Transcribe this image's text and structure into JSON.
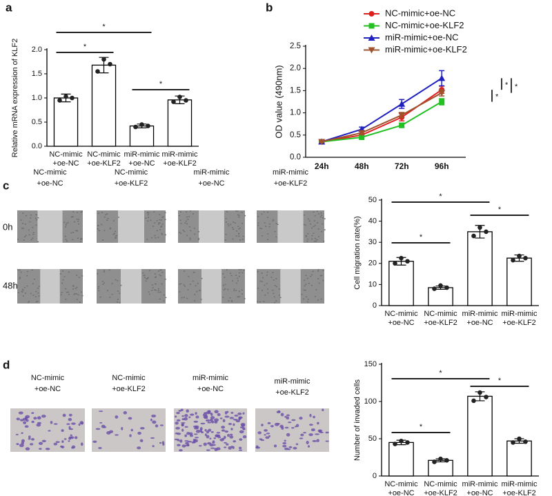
{
  "chart_data": [
    {
      "type": "bar",
      "ylabel": "Relative mRNA expression of KLF2",
      "categories": [
        [
          "NC-mimic",
          "+oe-NC"
        ],
        [
          "NC-mimic",
          "+oe-KLF2"
        ],
        [
          "miR-mimic",
          "+oe-NC"
        ],
        [
          "miR-mimic",
          "+oe-KLF2"
        ]
      ],
      "values": [
        1.0,
        1.68,
        0.42,
        0.96
      ],
      "errors": [
        0.08,
        0.16,
        0.04,
        0.08
      ],
      "points": [
        [
          0.95,
          1.03,
          1.0
        ],
        [
          1.55,
          1.8,
          1.7
        ],
        [
          0.4,
          0.45,
          0.42
        ],
        [
          0.92,
          1.02,
          0.95
        ]
      ],
      "color": "#ffffff",
      "ylim": [
        0,
        2
      ],
      "yticks": [
        {
          "value": 0,
          "label": "0.0"
        },
        0.5,
        {
          "value": 1,
          "label": "1.0"
        },
        1.5,
        {
          "value": 2,
          "label": "2.0"
        }
      ],
      "annotations": [
        "*",
        "*",
        "*"
      ]
    },
    {
      "type": "line",
      "ylabel": "OD value (490nm)",
      "categories": [
        "24h",
        "48h",
        "72h",
        "96h"
      ],
      "series": [
        {
          "name": "NC-mimic+oe-NC",
          "color": "#e02020",
          "marker": "circle",
          "values": [
            0.35,
            0.5,
            0.9,
            1.52
          ],
          "errors": [
            0.02,
            0.04,
            0.08,
            0.08
          ]
        },
        {
          "name": "NC-mimic+oe-KLF2",
          "color": "#22c022",
          "marker": "square",
          "values": [
            0.35,
            0.45,
            0.72,
            1.25
          ],
          "errors": [
            0.02,
            0.03,
            0.05,
            0.07
          ]
        },
        {
          "name": "miR-mimic+oe-NC",
          "color": "#2020c0",
          "marker": "triangle",
          "values": [
            0.35,
            0.63,
            1.2,
            1.78
          ],
          "errors": [
            0.02,
            0.05,
            0.1,
            0.17
          ]
        },
        {
          "name": "miR-mimic+oe-KLF2",
          "color": "#a0522d",
          "marker": "triangle-down",
          "values": [
            0.35,
            0.55,
            0.95,
            1.45
          ],
          "errors": [
            0.02,
            0.04,
            0.06,
            0.07
          ]
        }
      ],
      "ylim": [
        0,
        2.5
      ],
      "yticks": [
        {
          "value": 0,
          "label": "0.0"
        },
        0.5,
        {
          "value": 1,
          "label": "1.0"
        },
        1.5,
        {
          "value": 2,
          "label": "2.0"
        },
        2.5
      ],
      "annotations": [
        "*",
        "*",
        "*"
      ]
    },
    {
      "type": "bar",
      "ylabel": "Cell migration rate(%)",
      "categories": [
        [
          "NC-mimic",
          "+oe-NC"
        ],
        [
          "NC-mimic",
          "+oe-KLF2"
        ],
        [
          "miR-mimic",
          "+oe-NC"
        ],
        [
          "miR-mimic",
          "+oe-KLF2"
        ]
      ],
      "values": [
        21,
        8.5,
        35,
        22.5
      ],
      "errors": [
        1.8,
        0.8,
        3,
        1.5
      ],
      "points": [
        [
          20,
          22.5,
          21
        ],
        [
          8,
          9.5,
          8.5
        ],
        [
          33,
          37,
          35
        ],
        [
          21.5,
          23.5,
          22.5
        ]
      ],
      "color": "#ffffff",
      "ylim": [
        0,
        50
      ],
      "yticks": [
        0,
        10,
        20,
        30,
        40,
        50
      ],
      "annotations": [
        "*",
        "*",
        "*"
      ]
    },
    {
      "type": "bar",
      "ylabel": "Number of invaded cells",
      "categories": [
        [
          "NC-mimic",
          "+oe-NC"
        ],
        [
          "NC-mimic",
          "+oe-KLF2"
        ],
        [
          "miR-mimic",
          "+oe-NC"
        ],
        [
          "miR-mimic",
          "+oe-KLF2"
        ]
      ],
      "values": [
        45,
        21,
        107,
        47
      ],
      "errors": [
        3,
        2,
        6,
        3
      ],
      "points": [
        [
          43,
          47,
          45
        ],
        [
          19,
          23,
          21
        ],
        [
          101,
          112,
          106
        ],
        [
          45,
          50,
          46
        ]
      ],
      "color": "#ffffff",
      "ylim": [
        0,
        150
      ],
      "yticks": [
        0,
        50,
        100,
        150
      ],
      "annotations": [
        "*",
        "*",
        "*"
      ]
    }
  ],
  "panel_labels": [
    "a",
    "b",
    "c",
    "d"
  ],
  "wound_images": {
    "columns": [
      [
        "NC-mimic",
        "+oe-NC"
      ],
      [
        "NC-mimic",
        "+oe-KLF2"
      ],
      [
        "miR-mimic",
        "+oe-NC"
      ],
      [
        "miR-mimic",
        "+oe-KLF2"
      ]
    ],
    "rows": [
      "0h",
      "48h"
    ]
  },
  "transwell_images": {
    "columns": [
      [
        "NC-mimic",
        "+oe-NC"
      ],
      [
        "NC-mimic",
        "+oe-KLF2"
      ],
      [
        "miR-mimic",
        "+oe-NC"
      ],
      [
        "miR-mimic",
        "+oe-KLF2"
      ]
    ]
  }
}
